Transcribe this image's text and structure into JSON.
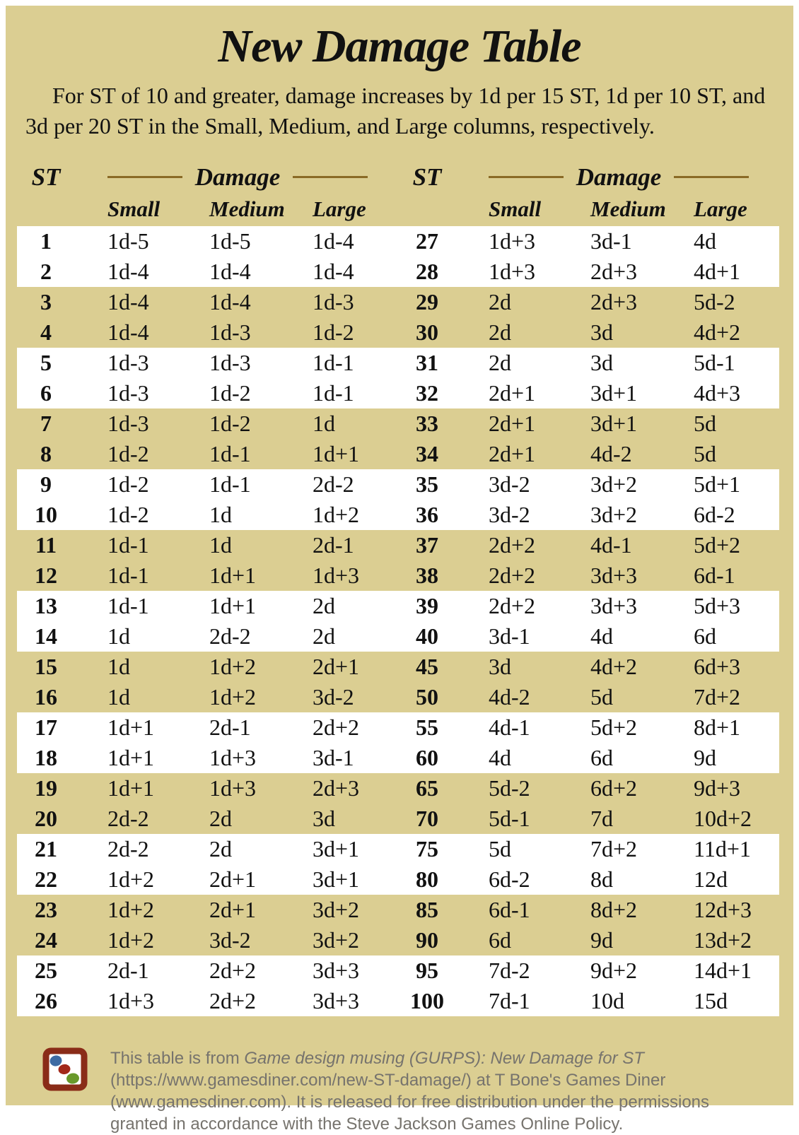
{
  "page": {
    "title": "New Damage Table",
    "intro_lines": [
      "For ST of 10 and greater, damage increases by 1d per 15 ST, 1d per 10 ST, and",
      "3d per 20 ST in the Small, Medium, and Large columns, respectively."
    ]
  },
  "table": {
    "headers": {
      "st": "ST",
      "damage": "Damage",
      "small": "Small",
      "medium": "Medium",
      "large": "Large"
    },
    "left_rows": [
      {
        "st": "1",
        "small": "1d-5",
        "medium": "1d-5",
        "large": "1d-4"
      },
      {
        "st": "2",
        "small": "1d-4",
        "medium": "1d-4",
        "large": "1d-4"
      },
      {
        "st": "3",
        "small": "1d-4",
        "medium": "1d-4",
        "large": "1d-3"
      },
      {
        "st": "4",
        "small": "1d-4",
        "medium": "1d-3",
        "large": "1d-2"
      },
      {
        "st": "5",
        "small": "1d-3",
        "medium": "1d-3",
        "large": "1d-1"
      },
      {
        "st": "6",
        "small": "1d-3",
        "medium": "1d-2",
        "large": "1d-1"
      },
      {
        "st": "7",
        "small": "1d-3",
        "medium": "1d-2",
        "large": "1d"
      },
      {
        "st": "8",
        "small": "1d-2",
        "medium": "1d-1",
        "large": "1d+1"
      },
      {
        "st": "9",
        "small": "1d-2",
        "medium": "1d-1",
        "large": "2d-2"
      },
      {
        "st": "10",
        "small": "1d-2",
        "medium": "1d",
        "large": "1d+2"
      },
      {
        "st": "11",
        "small": "1d-1",
        "medium": "1d",
        "large": "2d-1"
      },
      {
        "st": "12",
        "small": "1d-1",
        "medium": "1d+1",
        "large": "1d+3"
      },
      {
        "st": "13",
        "small": "1d-1",
        "medium": "1d+1",
        "large": "2d"
      },
      {
        "st": "14",
        "small": "1d",
        "medium": "2d-2",
        "large": "2d"
      },
      {
        "st": "15",
        "small": "1d",
        "medium": "1d+2",
        "large": "2d+1"
      },
      {
        "st": "16",
        "small": "1d",
        "medium": "1d+2",
        "large": "3d-2"
      },
      {
        "st": "17",
        "small": "1d+1",
        "medium": "2d-1",
        "large": "2d+2"
      },
      {
        "st": "18",
        "small": "1d+1",
        "medium": "1d+3",
        "large": "3d-1"
      },
      {
        "st": "19",
        "small": "1d+1",
        "medium": "1d+3",
        "large": "2d+3"
      },
      {
        "st": "20",
        "small": "2d-2",
        "medium": "2d",
        "large": "3d"
      },
      {
        "st": "21",
        "small": "2d-2",
        "medium": "2d",
        "large": "3d+1"
      },
      {
        "st": "22",
        "small": "1d+2",
        "medium": "2d+1",
        "large": "3d+1"
      },
      {
        "st": "23",
        "small": "1d+2",
        "medium": "2d+1",
        "large": "3d+2"
      },
      {
        "st": "24",
        "small": "1d+2",
        "medium": "3d-2",
        "large": "3d+2"
      },
      {
        "st": "25",
        "small": "2d-1",
        "medium": "2d+2",
        "large": "3d+3"
      },
      {
        "st": "26",
        "small": "1d+3",
        "medium": "2d+2",
        "large": "3d+3"
      }
    ],
    "right_rows": [
      {
        "st": "27",
        "small": "1d+3",
        "medium": "3d-1",
        "large": "4d"
      },
      {
        "st": "28",
        "small": "1d+3",
        "medium": "2d+3",
        "large": "4d+1"
      },
      {
        "st": "29",
        "small": "2d",
        "medium": "2d+3",
        "large": "5d-2"
      },
      {
        "st": "30",
        "small": "2d",
        "medium": "3d",
        "large": "4d+2"
      },
      {
        "st": "31",
        "small": "2d",
        "medium": "3d",
        "large": "5d-1"
      },
      {
        "st": "32",
        "small": "2d+1",
        "medium": "3d+1",
        "large": "4d+3"
      },
      {
        "st": "33",
        "small": "2d+1",
        "medium": "3d+1",
        "large": "5d"
      },
      {
        "st": "34",
        "small": "2d+1",
        "medium": "4d-2",
        "large": "5d"
      },
      {
        "st": "35",
        "small": "3d-2",
        "medium": "3d+2",
        "large": "5d+1"
      },
      {
        "st": "36",
        "small": "3d-2",
        "medium": "3d+2",
        "large": "6d-2"
      },
      {
        "st": "37",
        "small": "2d+2",
        "medium": "4d-1",
        "large": "5d+2"
      },
      {
        "st": "38",
        "small": "2d+2",
        "medium": "3d+3",
        "large": "6d-1"
      },
      {
        "st": "39",
        "small": "2d+2",
        "medium": "3d+3",
        "large": "5d+3"
      },
      {
        "st": "40",
        "small": "3d-1",
        "medium": "4d",
        "large": "6d"
      },
      {
        "st": "45",
        "small": "3d",
        "medium": "4d+2",
        "large": "6d+3"
      },
      {
        "st": "50",
        "small": "4d-2",
        "medium": "5d",
        "large": "7d+2"
      },
      {
        "st": "55",
        "small": "4d-1",
        "medium": "5d+2",
        "large": "8d+1"
      },
      {
        "st": "60",
        "small": "4d",
        "medium": "6d",
        "large": "9d"
      },
      {
        "st": "65",
        "small": "5d-2",
        "medium": "6d+2",
        "large": "9d+3"
      },
      {
        "st": "70",
        "small": "5d-1",
        "medium": "7d",
        "large": "10d+2"
      },
      {
        "st": "75",
        "small": "5d",
        "medium": "7d+2",
        "large": "11d+1"
      },
      {
        "st": "80",
        "small": "6d-2",
        "medium": "8d",
        "large": "12d"
      },
      {
        "st": "85",
        "small": "6d-1",
        "medium": "8d+2",
        "large": "12d+3"
      },
      {
        "st": "90",
        "small": "6d",
        "medium": "9d",
        "large": "13d+2"
      },
      {
        "st": "95",
        "small": "7d-2",
        "medium": "9d+2",
        "large": "14d+1"
      },
      {
        "st": "100",
        "small": "7d-1",
        "medium": "10d",
        "large": "15d"
      }
    ]
  },
  "footer": {
    "text_prefix": "This table is from ",
    "work_title": "Game design musing (GURPS): New Damage for ST",
    "text_suffix": " (https://www.gamesdiner.com/new-ST-damage/) at T Bone's Games Diner (www.gamesdiner.com). It is released for free distribution under the permissions granted in accordance with the Steve Jackson Games Online Policy.",
    "logo_icon": "games-diner-logo"
  },
  "colors": {
    "page_background": "#dbce92",
    "band_white": "#ffffff",
    "rule_gold": "#8a6a25",
    "text_black": "#111111",
    "footer_gray": "#76736d",
    "logo_border_red": "#8a2c18",
    "logo_dot_blue": "#3e6ba3",
    "logo_dot_red": "#a2281a",
    "logo_dot_green": "#68992b"
  }
}
